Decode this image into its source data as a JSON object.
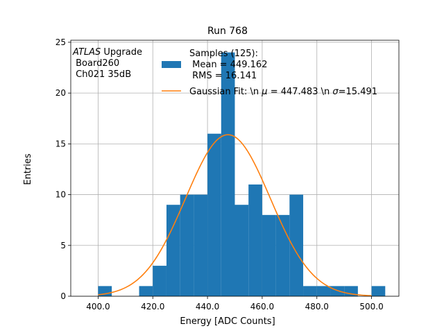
{
  "chart_data": {
    "type": "bar",
    "title": "Run 768",
    "xlabel": "Energy [ADC Counts]",
    "ylabel": "Entries",
    "xlim": [
      390,
      510
    ],
    "ylim": [
      0,
      25.2
    ],
    "x_ticks": [
      400,
      420,
      440,
      460,
      480,
      500
    ],
    "x_tick_labels": [
      "400.0",
      "420.0",
      "440.0",
      "460.0",
      "480.0",
      "500.0"
    ],
    "y_ticks": [
      0,
      5,
      10,
      15,
      20,
      25
    ],
    "y_tick_labels": [
      "0",
      "5",
      "10",
      "15",
      "20",
      "25"
    ],
    "grid": true,
    "histogram": {
      "bin_edges": [
        400,
        405,
        410,
        415,
        420,
        425,
        430,
        435,
        440,
        445,
        450,
        455,
        460,
        465,
        470,
        475,
        480,
        485,
        490,
        495,
        500,
        505
      ],
      "counts": [
        1,
        0,
        0,
        1,
        3,
        9,
        10,
        10,
        16,
        24,
        9,
        11,
        8,
        8,
        10,
        1,
        1,
        1,
        1,
        0,
        1
      ],
      "color": "#1f77b4"
    },
    "fit": {
      "type": "gaussian",
      "mean": 447.483,
      "sigma": 15.491,
      "amplitude": 15.9,
      "x_range": [
        400,
        500
      ],
      "color": "#ff7f0e"
    },
    "annotation": {
      "line1_italic": "ATLAS",
      "line1_rest": " Upgrade",
      "line2": " Board260",
      "line3": " Ch021 35dB"
    },
    "legend": {
      "position": "top-center",
      "samples_lines": [
        "Samples (125):",
        " Mean = 449.162",
        " RMS = 16.141"
      ],
      "fit_label_parts": [
        "Gaussian Fit: \\n ",
        "μ",
        " = 447.483 \\n ",
        "σ",
        "=15.491"
      ]
    }
  }
}
